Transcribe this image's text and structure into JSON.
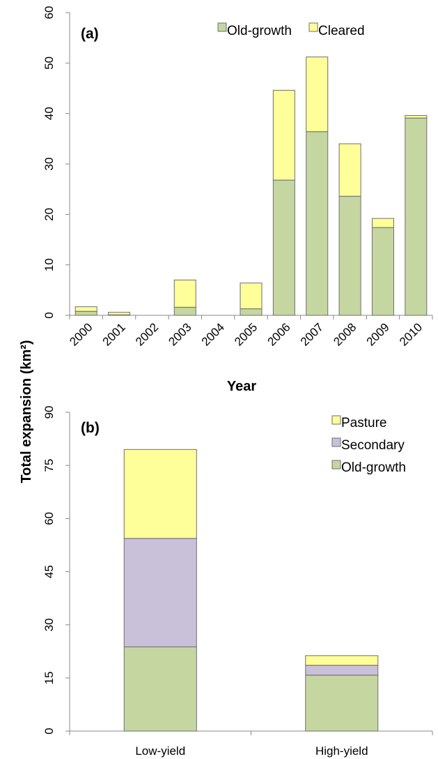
{
  "shared_ylabel": "Total  expansion (km²)",
  "colors": {
    "old_growth": "#c5d6a1",
    "cleared": "#ffff99",
    "pasture": "#ffff99",
    "secondary": "#c9c1d9",
    "stroke": "#6e6e6e",
    "axis": "#888888"
  },
  "chart_data": [
    {
      "type": "bar",
      "stacked": true,
      "panel_label": "(a)",
      "xlabel": "Year",
      "categories": [
        "2000",
        "2001",
        "2002",
        "2003",
        "2004",
        "2005",
        "2006",
        "2007",
        "2008",
        "2009",
        "2010"
      ],
      "series": [
        {
          "name": "Old-growth",
          "color": "#c5d6a1",
          "values": [
            0.8,
            0.1,
            0,
            1.6,
            0,
            1.3,
            26.8,
            36.4,
            23.6,
            17.4,
            39.1
          ]
        },
        {
          "name": "Cleared",
          "color": "#ffff99",
          "values": [
            0.9,
            0.5,
            0,
            5.4,
            0,
            5.1,
            17.8,
            14.8,
            10.4,
            1.8,
            0.5
          ]
        }
      ],
      "ylim": [
        0,
        60
      ],
      "yticks": [
        0,
        10,
        20,
        30,
        40,
        50,
        60
      ],
      "legend_position": "top-right"
    },
    {
      "type": "bar",
      "stacked": true,
      "panel_label": "(b)",
      "categories": [
        "Low-yield",
        "High-yield"
      ],
      "series": [
        {
          "name": "Old-growth",
          "color": "#c5d6a1",
          "values": [
            23.8,
            15.8
          ]
        },
        {
          "name": "Secondary",
          "color": "#c9c1d9",
          "values": [
            30.6,
            2.8
          ]
        },
        {
          "name": "Pasture",
          "color": "#ffff99",
          "values": [
            25.1,
            2.7
          ]
        }
      ],
      "ylim": [
        0,
        90
      ],
      "yticks": [
        0,
        15,
        30,
        45,
        60,
        75,
        90
      ],
      "legend_position": "top-right"
    }
  ]
}
